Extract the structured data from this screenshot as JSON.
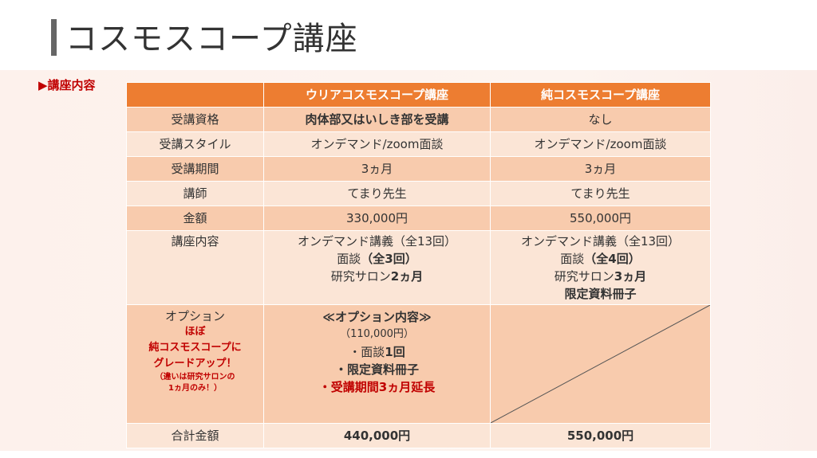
{
  "slide": {
    "title": "コスモスコープ講座",
    "section_label": "▶講座内容"
  },
  "table": {
    "headers": [
      "",
      "ウリアコスモスコープ講座",
      "純コスモスコープ講座"
    ],
    "rows": {
      "eligibility": {
        "label": "受講資格",
        "a": "肉体部又はいしき部を受講",
        "b": "なし"
      },
      "style": {
        "label": "受講スタイル",
        "a": "オンデマンド/zoom面談",
        "b": "オンデマンド/zoom面談"
      },
      "period": {
        "label": "受講期間",
        "a": "3ヵ月",
        "b": "3ヵ月"
      },
      "teacher": {
        "label": "講師",
        "a": "てまり先生",
        "b": "てまり先生"
      },
      "price": {
        "label": "金額",
        "a": "330,000円",
        "b": "550,000円"
      },
      "content": {
        "label": "講座内容",
        "a": {
          "line1": "オンデマンド講義（全13回）",
          "line2_pre": "面談",
          "line2_bold": "（全3回）",
          "line3_pre": "研究サロン",
          "line3_bold": "2ヵ月"
        },
        "b": {
          "line1": "オンデマンド講義（全13回）",
          "line2_pre": "面談",
          "line2_bold": "（全4回）",
          "line3_pre": "研究サロン",
          "line3_bold": "3ヵ月",
          "line4": "限定資料冊子"
        }
      },
      "option": {
        "label": "オプション",
        "label_red1": "ほぼ",
        "label_red2": "純コスモスコープに",
        "label_red3": "グレードアップ！",
        "label_note1": "（違いは研究サロンの",
        "label_note2": "1ヵ月のみ！）",
        "a": {
          "heading": "≪オプション内容≫",
          "price": "（110,000円）",
          "item1_pre": "・面談",
          "item1_bold": "1回",
          "item2": "・限定資料冊子",
          "item3": "・受講期間3ヵ月延長"
        }
      },
      "total": {
        "label": "合計金額",
        "a": "440,000円",
        "b": "550,000円"
      }
    }
  },
  "colors": {
    "header": "#ed7d31",
    "row_dark": "#f8cbad",
    "row_light": "#fbe5d6",
    "accent_red": "#c00000"
  }
}
